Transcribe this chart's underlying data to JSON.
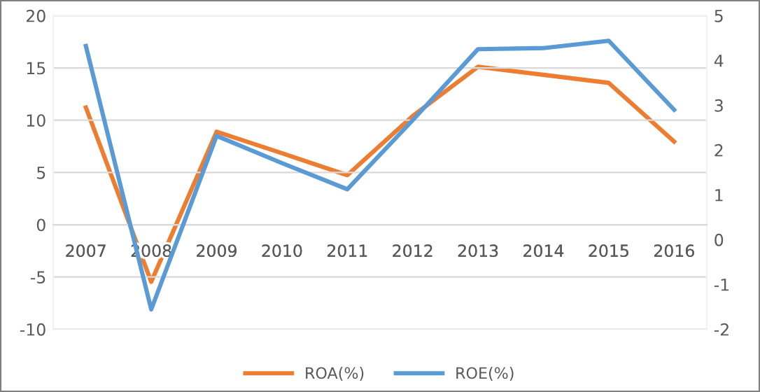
{
  "chart_data": {
    "type": "line",
    "categories": [
      "2007",
      "2008",
      "2009",
      "2010",
      "2011",
      "2012",
      "2013",
      "2014",
      "2015",
      "2016"
    ],
    "series": [
      {
        "name": "ROA(%)",
        "color": "#ed7d31",
        "axis": "y2",
        "values": [
          2.95,
          -0.94,
          2.41,
          1.93,
          1.44,
          2.76,
          3.86,
          3.68,
          3.5,
          2.19
        ]
      },
      {
        "name": "ROE(%)",
        "color": "#5b9bd5",
        "values": [
          17.1,
          -8.1,
          8.5,
          5.9,
          3.4,
          10.0,
          16.8,
          16.9,
          17.6,
          11.0
        ]
      }
    ],
    "ylim": [
      -10,
      20
    ],
    "yticks": [
      -10,
      -5,
      0,
      5,
      10,
      15,
      20
    ],
    "y2lim": [
      -2,
      5
    ],
    "y2ticks": [
      -2,
      -1,
      0,
      1,
      2,
      3,
      4,
      5
    ],
    "grid": "y",
    "legend": "bottom",
    "marker": "none",
    "line_style": "solid"
  }
}
